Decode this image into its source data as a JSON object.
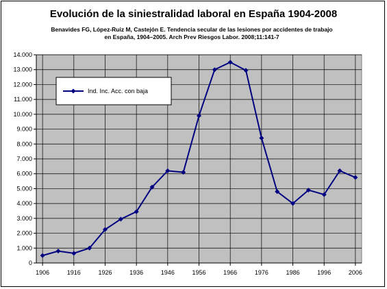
{
  "chart_data": {
    "type": "line",
    "title": "Evolución de la siniestralidad laboral en España 1904-2008",
    "subtitle_lines": [
      "Benavides FG, López-Ruiz M, Castejón E. Tendencia secular de las lesiones por accidentes de trabajo",
      "en España, 1904–2005. Arch Prev Riesgos Labor. 2008;11:141-7"
    ],
    "xlabel": "",
    "ylabel": "",
    "ylim": [
      0,
      14000
    ],
    "y_ticks": [
      "0",
      "1.000",
      "2.000",
      "3.000",
      "4.000",
      "5.000",
      "6.000",
      "7.000",
      "8.000",
      "9.000",
      "10.000",
      "11.000",
      "12.000",
      "13.000",
      "14.000"
    ],
    "x_ticks": [
      "1906",
      "1916",
      "1926",
      "1936",
      "1946",
      "1956",
      "1966",
      "1976",
      "1986",
      "1996",
      "2006"
    ],
    "x_range": [
      1904,
      2008
    ],
    "grid": true,
    "plot_background": "#c0c0c0",
    "line_color": "#000080",
    "legend_position": "top-left",
    "series": [
      {
        "name": "Ind. Inc. Acc. con baja",
        "x": [
          1906,
          1911,
          1916,
          1921,
          1926,
          1931,
          1936,
          1941,
          1946,
          1951,
          1956,
          1961,
          1966,
          1971,
          1976,
          1981,
          1986,
          1991,
          1996,
          2001,
          2006
        ],
        "values": [
          500,
          800,
          650,
          1000,
          2250,
          2950,
          3450,
          5100,
          6200,
          6100,
          9900,
          13000,
          13500,
          12950,
          8400,
          4800,
          4000,
          4900,
          4600,
          6200,
          5750
        ]
      }
    ]
  }
}
